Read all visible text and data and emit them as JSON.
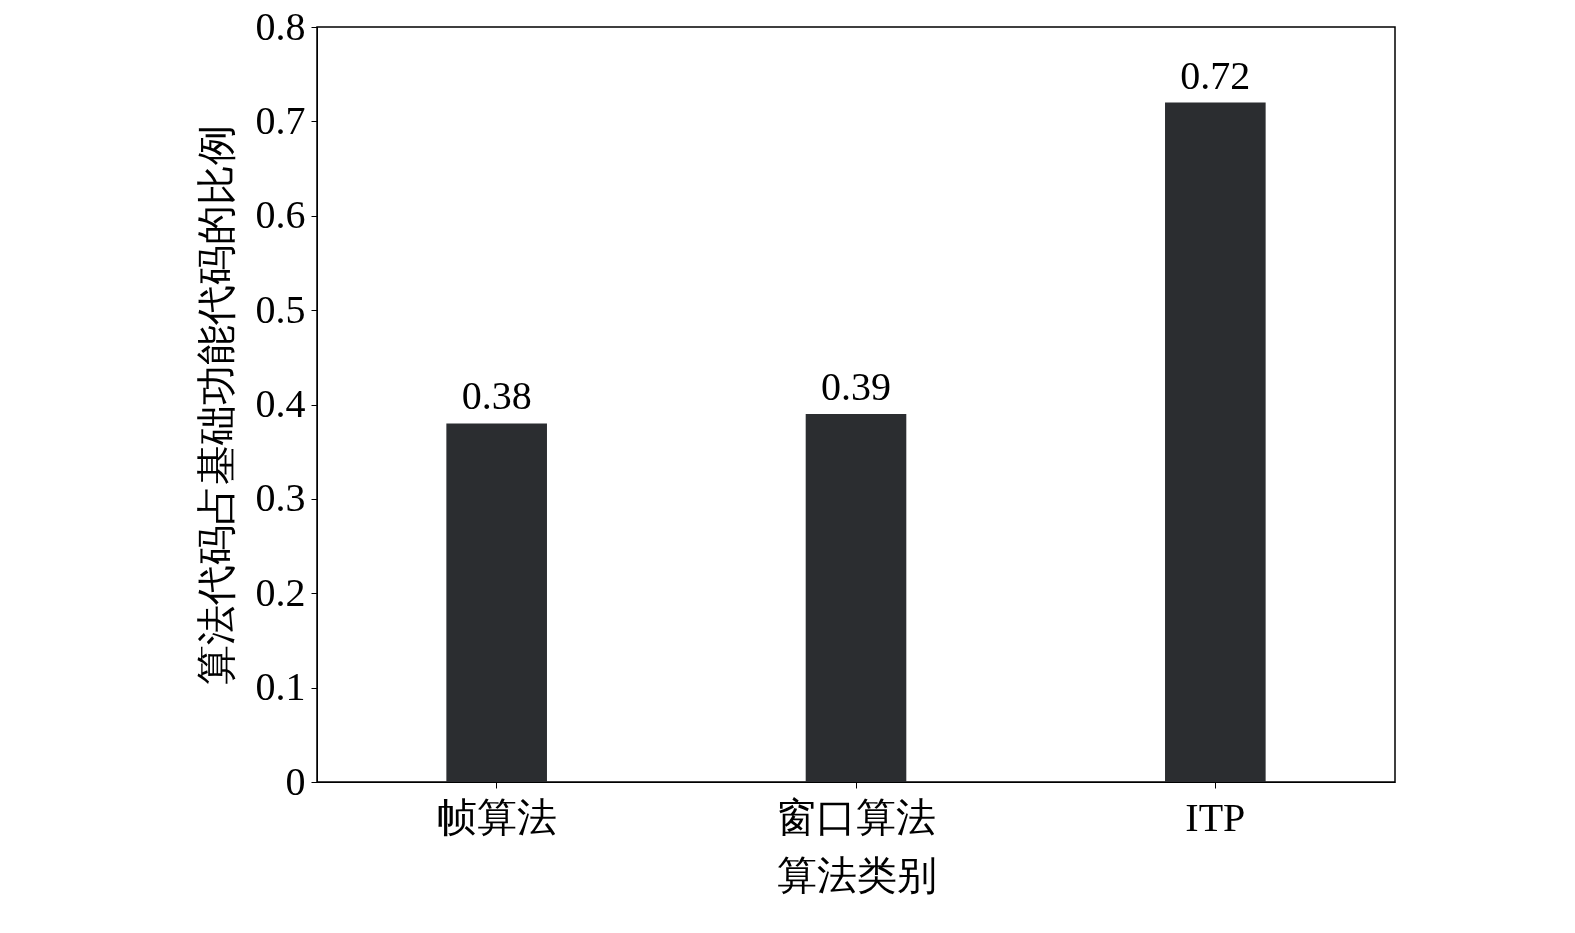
{
  "chart_data": {
    "type": "bar",
    "xlabel": "算法类别",
    "ylabel": "算法代码占基础功能代码的比例",
    "categories": [
      "帧算法",
      "窗口算法",
      "ITP"
    ],
    "values": [
      0.38,
      0.39,
      0.72
    ],
    "color": "#2b2d30",
    "ylim": [
      0,
      0.8
    ],
    "yticks": [
      0,
      0.1,
      0.2,
      0.3,
      0.4,
      0.5,
      0.6,
      0.7,
      0.8
    ],
    "data_labels": true,
    "grid": false
  }
}
